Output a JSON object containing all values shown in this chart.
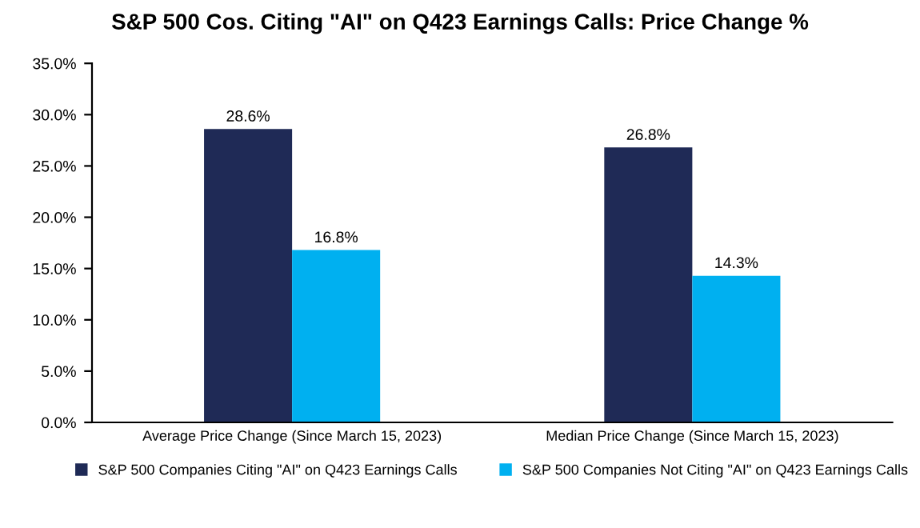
{
  "chart_data": {
    "type": "bar",
    "title": "S&P 500 Cos. Citing \"AI\" on Q423 Earnings Calls: Price Change %",
    "categories": [
      "Average Price Change (Since March 15, 2023)",
      "Median Price Change (Since March 15, 2023)"
    ],
    "series": [
      {
        "name": "S&P 500 Companies Citing \"AI\" on Q423 Earnings Calls",
        "color": "#1f2a56",
        "values": [
          28.6,
          26.8
        ],
        "value_labels": [
          "28.6%",
          "26.8%"
        ]
      },
      {
        "name": "S&P 500 Companies Not Citing \"AI\" on Q423 Earnings Calls",
        "color": "#00b0f0",
        "values": [
          16.8,
          14.3
        ],
        "value_labels": [
          "16.8%",
          "14.3%"
        ]
      }
    ],
    "ylim": [
      0,
      35
    ],
    "yticks": [
      {
        "value": 0,
        "label": "0.0%"
      },
      {
        "value": 5,
        "label": "5.0%"
      },
      {
        "value": 10,
        "label": "10.0%"
      },
      {
        "value": 15,
        "label": "15.0%"
      },
      {
        "value": 20,
        "label": "20.0%"
      },
      {
        "value": 25,
        "label": "25.0%"
      },
      {
        "value": 30,
        "label": "30.0%"
      },
      {
        "value": 35,
        "label": "35.0%"
      }
    ],
    "grid": false,
    "legend": "bottom"
  }
}
